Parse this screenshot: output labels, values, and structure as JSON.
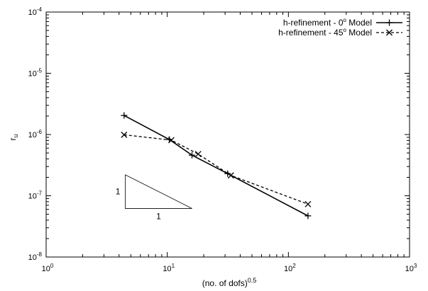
{
  "chart_data": {
    "type": "line",
    "title": "",
    "xlabel": "(no. of dofs)",
    "xlabel_exponent": "0.5",
    "ylabel": "r",
    "ylabel_subscript": "u",
    "xscale": "log",
    "yscale": "log",
    "xlim": [
      1,
      1000
    ],
    "ylim": [
      1e-08,
      0.0001
    ],
    "grid": false,
    "legend_position": "top-right",
    "x_ticks": [
      {
        "value": 1,
        "base": "10",
        "exp": "0"
      },
      {
        "value": 10,
        "base": "10",
        "exp": "1"
      },
      {
        "value": 100,
        "base": "10",
        "exp": "2"
      },
      {
        "value": 1000,
        "base": "10",
        "exp": "3"
      }
    ],
    "y_ticks": [
      {
        "value": 1e-08,
        "base": "10",
        "exp": "-8"
      },
      {
        "value": 1e-07,
        "base": "10",
        "exp": "-7"
      },
      {
        "value": 1e-06,
        "base": "10",
        "exp": "-6"
      },
      {
        "value": 1e-05,
        "base": "10",
        "exp": "-5"
      },
      {
        "value": 0.0001,
        "base": "10",
        "exp": "-4"
      }
    ],
    "series": [
      {
        "name": "h-refinement - 0",
        "name_sup": "o",
        "name_suffix": " Model",
        "line_style": "solid",
        "marker": "plus",
        "color": "#000000",
        "x": [
          4.4,
          10.4,
          16.0,
          31.5,
          145
        ],
        "y": [
          2.05e-06,
          8.3e-07,
          4.6e-07,
          2.3e-07,
          4.7e-08
        ]
      },
      {
        "name": "h-refinement - 45",
        "name_sup": "o",
        "name_suffix": " Model",
        "line_style": "dashed",
        "marker": "cross",
        "color": "#000000",
        "x": [
          4.4,
          10.8,
          18.0,
          33.5,
          145
        ],
        "y": [
          9.9e-07,
          8.1e-07,
          4.8e-07,
          2.15e-07,
          7.3e-08
        ]
      }
    ],
    "slope_triangle": {
      "x_left": 4.5,
      "x_right": 16.0,
      "y_top": 2.2e-07,
      "y_bottom": 6.2e-08,
      "vertical_label": "1",
      "horizontal_label": "1"
    }
  }
}
